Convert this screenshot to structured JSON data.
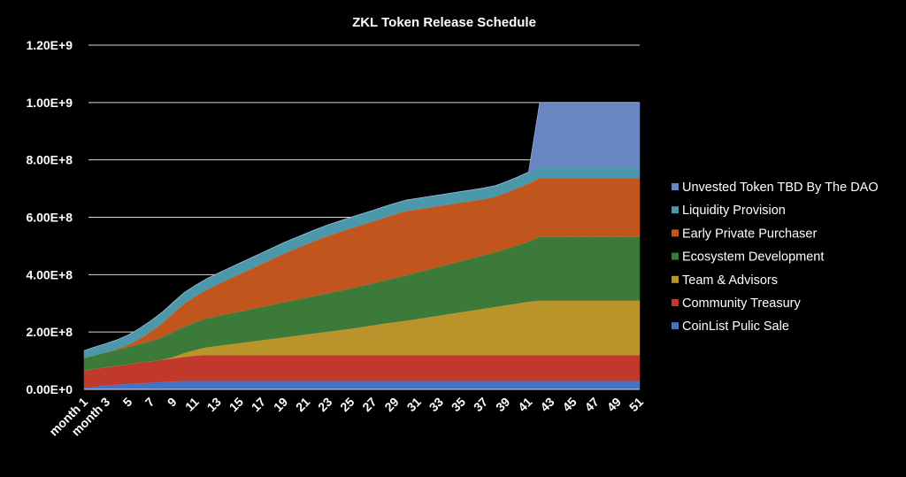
{
  "chart_data": {
    "type": "area",
    "stacked": true,
    "title": "ZKL Token Release Schedule",
    "xlabel": "",
    "ylabel": "",
    "x": [
      1,
      2,
      3,
      4,
      5,
      6,
      7,
      8,
      9,
      10,
      11,
      12,
      13,
      14,
      15,
      16,
      17,
      18,
      19,
      20,
      21,
      22,
      23,
      24,
      25,
      26,
      27,
      28,
      29,
      30,
      31,
      32,
      33,
      34,
      35,
      36,
      37,
      38,
      39,
      40,
      41,
      42,
      43,
      44,
      45,
      46,
      47,
      48,
      49,
      50,
      51
    ],
    "x_tick_labels": [
      "month 1",
      "month 3",
      "5",
      "7",
      "9",
      "11",
      "13",
      "15",
      "17",
      "19",
      "21",
      "23",
      "25",
      "27",
      "29",
      "31",
      "33",
      "35",
      "37",
      "39",
      "41",
      "43",
      "45",
      "47",
      "49",
      "51"
    ],
    "ylim": [
      0,
      1200000000
    ],
    "y_tick_labels": [
      "0.00E+0",
      "2.00E+8",
      "4.00E+8",
      "6.00E+8",
      "8.00E+8",
      "1.00E+9",
      "1.20E+9"
    ],
    "grid": true,
    "legend_position": "right",
    "series": [
      {
        "name": "CoinList Pulic Sale",
        "color": "#4472c4",
        "values": [
          5000000,
          10000000,
          15000000,
          17000000,
          20000000,
          22000000,
          24000000,
          26000000,
          28000000,
          30000000,
          30000000,
          30000000,
          30000000,
          30000000,
          30000000,
          30000000,
          30000000,
          30000000,
          30000000,
          30000000,
          30000000,
          30000000,
          30000000,
          30000000,
          30000000,
          30000000,
          30000000,
          30000000,
          30000000,
          30000000,
          30000000,
          30000000,
          30000000,
          30000000,
          30000000,
          30000000,
          30000000,
          30000000,
          30000000,
          30000000,
          30000000,
          30000000,
          30000000,
          30000000,
          30000000,
          30000000,
          30000000,
          30000000,
          30000000,
          30000000,
          30000000
        ]
      },
      {
        "name": "Community Treasury",
        "color": "#c0392b",
        "values": [
          60000000,
          62000000,
          63000000,
          66000000,
          68000000,
          72000000,
          74000000,
          78000000,
          80000000,
          84000000,
          88000000,
          90000000,
          90000000,
          90000000,
          90000000,
          90000000,
          90000000,
          90000000,
          90000000,
          90000000,
          90000000,
          90000000,
          90000000,
          90000000,
          90000000,
          90000000,
          90000000,
          90000000,
          90000000,
          90000000,
          90000000,
          90000000,
          90000000,
          90000000,
          90000000,
          90000000,
          90000000,
          90000000,
          90000000,
          90000000,
          90000000,
          90000000,
          90000000,
          90000000,
          90000000,
          90000000,
          90000000,
          90000000,
          90000000,
          90000000,
          90000000
        ]
      },
      {
        "name": "Team & Advisors",
        "color": "#b8942b",
        "values": [
          0,
          0,
          0,
          0,
          0,
          0,
          0,
          0,
          5000000,
          13000000,
          20000000,
          27000000,
          32000000,
          37000000,
          42000000,
          47000000,
          52000000,
          57000000,
          62000000,
          67000000,
          72000000,
          77000000,
          82000000,
          87000000,
          92000000,
          98000000,
          104000000,
          110000000,
          115000000,
          120000000,
          126000000,
          132000000,
          138000000,
          144000000,
          150000000,
          156000000,
          162000000,
          168000000,
          174000000,
          180000000,
          186000000,
          190000000,
          190000000,
          190000000,
          190000000,
          190000000,
          190000000,
          190000000,
          190000000,
          190000000,
          190000000
        ]
      },
      {
        "name": "Ecosystem Development",
        "color": "#3c7a3a",
        "values": [
          45000000,
          48000000,
          52000000,
          56000000,
          60000000,
          65000000,
          70000000,
          78000000,
          87000000,
          92000000,
          96000000,
          100000000,
          104000000,
          107000000,
          110000000,
          113000000,
          116000000,
          119000000,
          122000000,
          125000000,
          128000000,
          131000000,
          134000000,
          137000000,
          140000000,
          143000000,
          146000000,
          150000000,
          154000000,
          158000000,
          162000000,
          166000000,
          170000000,
          174000000,
          178000000,
          182000000,
          186000000,
          190000000,
          196000000,
          202000000,
          210000000,
          222000000,
          222000000,
          222000000,
          222000000,
          222000000,
          222000000,
          222000000,
          222000000,
          222000000,
          222000000
        ]
      },
      {
        "name": "Early Private Purchaser",
        "color": "#c0561e",
        "values": [
          0,
          0,
          0,
          2000000,
          8000000,
          18000000,
          33000000,
          48000000,
          65000000,
          80000000,
          90000000,
          100000000,
          110000000,
          120000000,
          130000000,
          140000000,
          150000000,
          160000000,
          170000000,
          178000000,
          186000000,
          194000000,
          200000000,
          205000000,
          210000000,
          213000000,
          216000000,
          219000000,
          222000000,
          224000000,
          220000000,
          216000000,
          212000000,
          208000000,
          204000000,
          200000000,
          196000000,
          194000000,
          196000000,
          200000000,
          202000000,
          205000000,
          205000000,
          205000000,
          205000000,
          205000000,
          205000000,
          205000000,
          205000000,
          205000000,
          205000000
        ]
      },
      {
        "name": "Liquidity Provision",
        "color": "#4a98a9",
        "values": [
          25000000,
          28000000,
          30000000,
          32000000,
          34000000,
          36000000,
          38000000,
          38000000,
          38000000,
          38000000,
          38000000,
          38000000,
          38000000,
          38000000,
          38000000,
          38000000,
          38000000,
          38000000,
          38000000,
          38000000,
          38000000,
          38000000,
          38000000,
          38000000,
          38000000,
          38000000,
          38000000,
          38000000,
          38000000,
          38000000,
          38000000,
          38000000,
          38000000,
          38000000,
          38000000,
          38000000,
          38000000,
          38000000,
          38000000,
          38000000,
          38000000,
          38000000,
          38000000,
          38000000,
          38000000,
          38000000,
          38000000,
          38000000,
          38000000,
          38000000,
          38000000
        ]
      },
      {
        "name": "Unvested Token TBD By The DAO",
        "color": "#6a86c2",
        "values": [
          0,
          0,
          0,
          0,
          0,
          0,
          0,
          0,
          0,
          0,
          0,
          0,
          0,
          0,
          0,
          0,
          0,
          0,
          0,
          0,
          0,
          0,
          0,
          0,
          0,
          0,
          0,
          0,
          0,
          0,
          0,
          0,
          0,
          0,
          0,
          0,
          0,
          0,
          0,
          0,
          2000000,
          225000000,
          225000000,
          225000000,
          225000000,
          225000000,
          225000000,
          225000000,
          225000000,
          225000000,
          225000000
        ]
      }
    ],
    "legend_order": [
      "Unvested Token TBD By The DAO",
      "Liquidity Provision",
      "Early Private Purchaser",
      "Ecosystem Development",
      "Team & Advisors",
      "Community Treasury",
      "CoinList Pulic Sale"
    ]
  }
}
